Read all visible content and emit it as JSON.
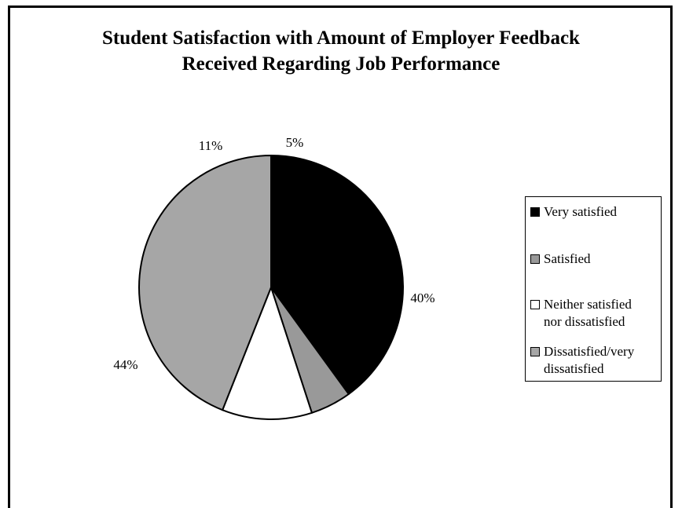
{
  "chart_data": {
    "type": "pie",
    "title": "Student Satisfaction with Amount of Employer Feedback Received Regarding Job Performance",
    "title_lines": [
      "Student Satisfaction with Amount of Employer Feedback",
      "Received Regarding Job Performance"
    ],
    "legend_position": "right",
    "slices": [
      {
        "label": "Very satisfied",
        "value": 40,
        "display": "40%",
        "color": "#000000"
      },
      {
        "label": "Satisfied",
        "value": 5,
        "display": "5%",
        "color": "#999999"
      },
      {
        "label": "Neither satisfied nor dissatisfied",
        "value": 11,
        "display": "11%",
        "color": "#ffffff"
      },
      {
        "label": "Dissatisfied/very dissatisfied",
        "value": 44,
        "display": "44%",
        "color": "#a6a6a6"
      }
    ],
    "legend_lines": [
      "Very satisfied",
      "Satisfied",
      "Neither satisfied\nnor dissatisfied",
      "Dissatisfied/very\ndissatisfied"
    ]
  }
}
